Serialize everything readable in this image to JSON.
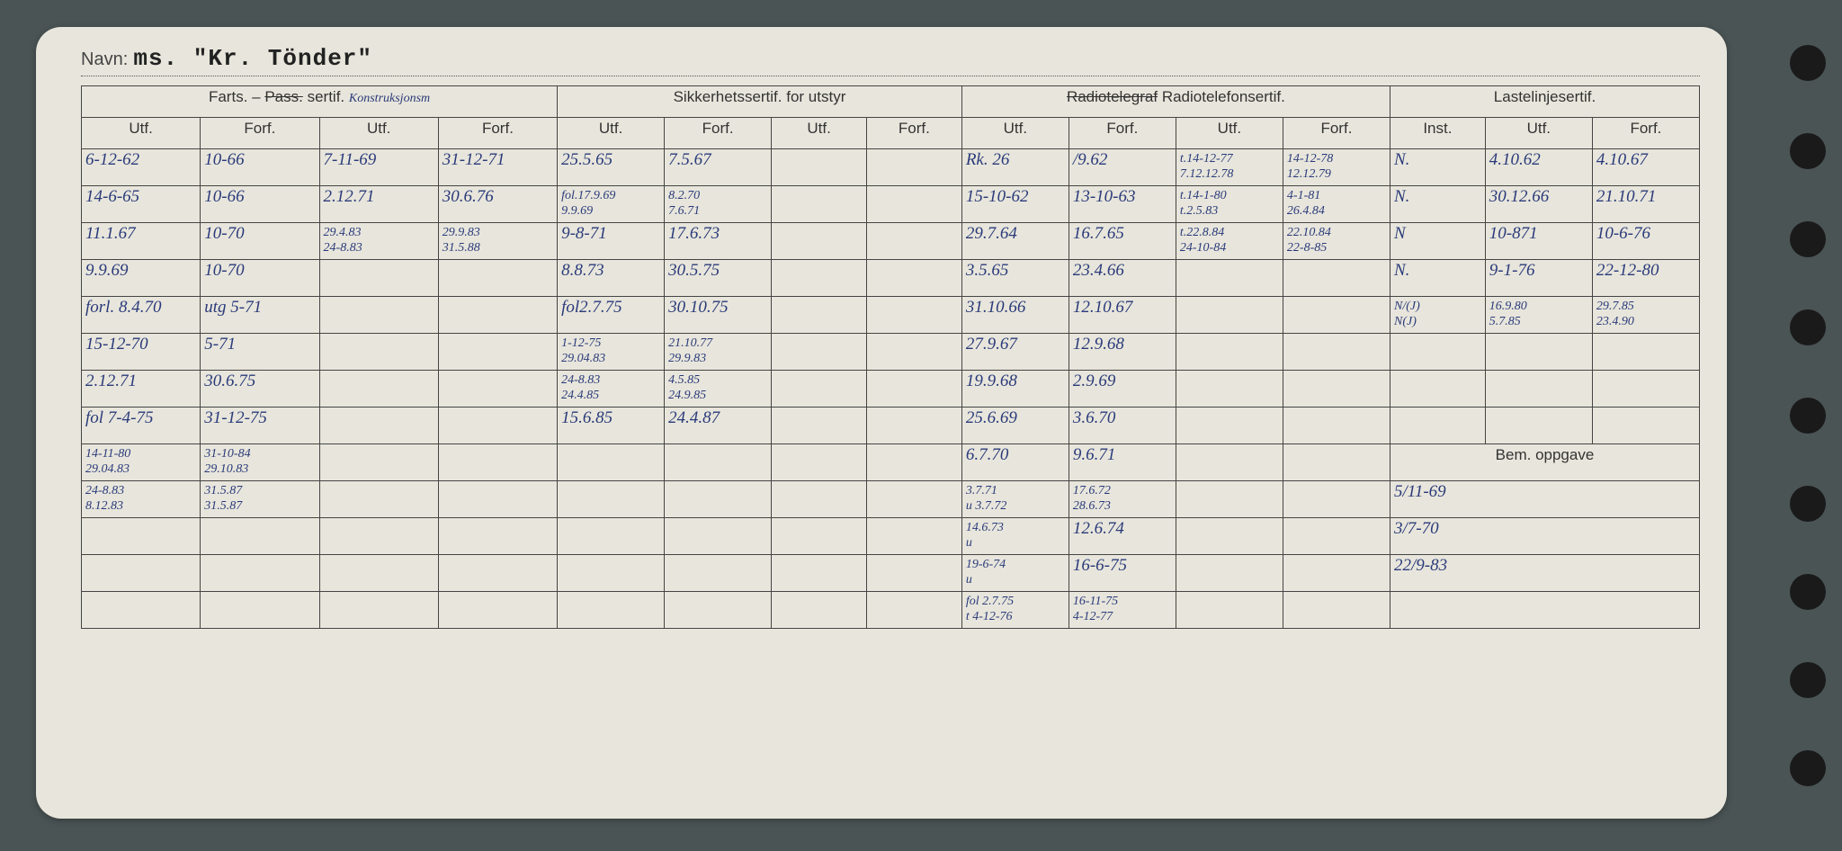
{
  "navn_label": "Navn:",
  "navn_value": "ms. \"Kr. Tönder\"",
  "groups": {
    "farts": {
      "label_plain": "Farts. –",
      "label_strike": "Pass.",
      "label_after": "sertif.",
      "scribble": "Konstruksjonsm"
    },
    "sikkerhet": "Sikkerhetssertif. for utstyr",
    "radio_strike": "Radiotelegraf",
    "radio_after": "Radiotelefonsertif.",
    "laste": "Lastelinjesertif.",
    "bem": "Bem. oppgave"
  },
  "subheads": {
    "utf": "Utf.",
    "forf": "Forf.",
    "inst": "Inst."
  },
  "rows": [
    {
      "c1": "6-12-62",
      "c2": "10-66",
      "c3": "7-11-69",
      "c4": "31-12-71",
      "c5": "25.5.65",
      "c6": "7.5.67",
      "c7": "",
      "c8": "",
      "c9": "Rk. 26",
      "c10": "/9.62",
      "c11": "t.14-12-77\n7.12.12.78",
      "c12": "14-12-78\n12.12.79",
      "c13": "N.",
      "c14": "4.10.62",
      "c15": "4.10.67"
    },
    {
      "c1": "14-6-65",
      "c2": "10-66",
      "c3": "2.12.71",
      "c4": "30.6.76",
      "c5": "fol.17.9.69\n9.9.69",
      "c6": "8.2.70\n7.6.71",
      "c7": "",
      "c8": "",
      "c9": "15-10-62",
      "c10": "13-10-63",
      "c11": "t.14-1-80\nt.2.5.83",
      "c12": "4-1-81\n26.4.84",
      "c13": "N.",
      "c14": "30.12.66",
      "c15": "21.10.71"
    },
    {
      "c1": "11.1.67",
      "c2": "10-70",
      "c3": "29.4.83\n24-8.83",
      "c4": "29.9.83\n31.5.88",
      "c5": "9-8-71",
      "c6": "17.6.73",
      "c7": "",
      "c8": "",
      "c9": "29.7.64",
      "c10": "16.7.65",
      "c11": "t.22.8.84\n24-10-84",
      "c12": "22.10.84\n22-8-85",
      "c13": "N",
      "c14": "10-871",
      "c15": "10-6-76"
    },
    {
      "c1": "9.9.69",
      "c2": "10-70",
      "c3": "",
      "c4": "",
      "c5": "8.8.73",
      "c6": "30.5.75",
      "c7": "",
      "c8": "",
      "c9": "3.5.65",
      "c10": "23.4.66",
      "c11": "",
      "c12": "",
      "c13": "N.",
      "c14": "9-1-76",
      "c15": "22-12-80"
    },
    {
      "c1": "forl. 8.4.70",
      "c2": "utg 5-71",
      "c3": "",
      "c4": "",
      "c5": "fol2.7.75",
      "c6": "30.10.75",
      "c7": "",
      "c8": "",
      "c9": "31.10.66",
      "c10": "12.10.67",
      "c11": "",
      "c12": "",
      "c13": "N/(J)\nN(J)",
      "c14": "16.9.80\n5.7.85",
      "c15": "29.7.85\n23.4.90"
    },
    {
      "c1": "15-12-70",
      "c2": "5-71",
      "c3": "",
      "c4": "",
      "c5": "1-12-75\n29.04.83",
      "c6": "21.10.77\n29.9.83",
      "c7": "",
      "c8": "",
      "c9": "27.9.67",
      "c10": "12.9.68",
      "c11": "",
      "c12": "",
      "c13": "",
      "c14": "",
      "c15": ""
    },
    {
      "c1": "2.12.71",
      "c2": "30.6.75",
      "c3": "",
      "c4": "",
      "c5": "24-8.83\n24.4.85",
      "c6": "4.5.85\n24.9.85",
      "c7": "",
      "c8": "",
      "c9": "19.9.68",
      "c10": "2.9.69",
      "c11": "",
      "c12": "",
      "c13": "",
      "c14": "",
      "c15": ""
    },
    {
      "c1": "fol 7-4-75",
      "c2": "31-12-75",
      "c3": "",
      "c4": "",
      "c5": "15.6.85",
      "c6": "24.4.87",
      "c7": "",
      "c8": "",
      "c9": "25.6.69",
      "c10": "3.6.70",
      "c11": "",
      "c12": "",
      "c13": "",
      "c14": "",
      "c15": ""
    },
    {
      "c1": "14-11-80\n29.04.83",
      "c2": "31-10-84\n29.10.83",
      "c3": "",
      "c4": "",
      "c5": "",
      "c6": "",
      "c7": "",
      "c8": "",
      "c9": "6.7.70",
      "c10": "9.6.71",
      "c11": "",
      "c12": "",
      "bem": ""
    },
    {
      "c1": "24-8.83\n8.12.83",
      "c2": "31.5.87\n31.5.87",
      "c3": "",
      "c4": "",
      "c5": "",
      "c6": "",
      "c7": "",
      "c8": "",
      "c9": "3.7.71\nu 3.7.72",
      "c10": "17.6.72\n28.6.73",
      "c11": "",
      "c12": "",
      "bem": "5/11-69"
    },
    {
      "c1": "",
      "c2": "",
      "c3": "",
      "c4": "",
      "c5": "",
      "c6": "",
      "c7": "",
      "c8": "",
      "c9": "14.6.73\nu",
      "c10": "12.6.74",
      "c11": "",
      "c12": "",
      "bem": "3/7-70"
    },
    {
      "c1": "",
      "c2": "",
      "c3": "",
      "c4": "",
      "c5": "",
      "c6": "",
      "c7": "",
      "c8": "",
      "c9": "19-6-74\nu",
      "c10": "16-6-75",
      "c11": "",
      "c12": "",
      "bem": "22/9-83"
    },
    {
      "c1": "",
      "c2": "",
      "c3": "",
      "c4": "",
      "c5": "",
      "c6": "",
      "c7": "",
      "c8": "",
      "c9": "fol 2.7.75\nt 4-12-76",
      "c10": "16-11-75\n4-12-77",
      "c11": "",
      "c12": "",
      "bem": ""
    }
  ],
  "colors": {
    "bg": "#4a5455",
    "card": "#e8e6dc",
    "ink_blue": "#2a3a7a",
    "ink_black": "#222",
    "border": "#444"
  }
}
